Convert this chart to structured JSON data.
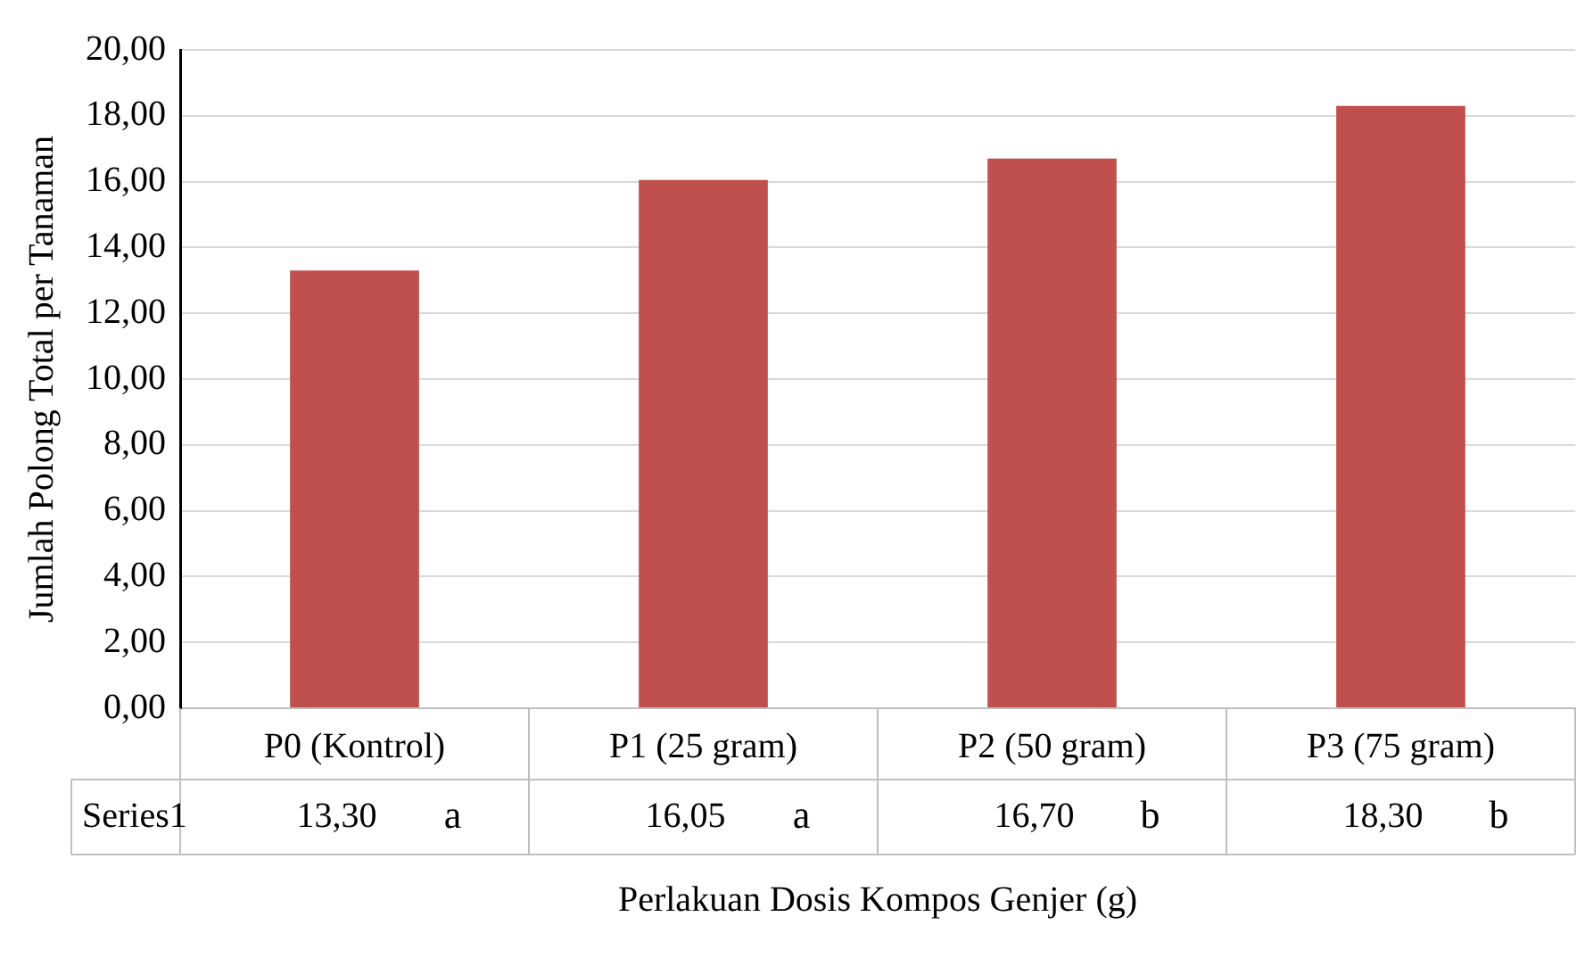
{
  "chart_data": {
    "type": "bar",
    "xlabel": "Perlakuan Dosis Kompos Genjer (g)",
    "ylabel": "Jumlah Polong Total per Tanaman",
    "categories": [
      "P0 (Kontrol)",
      "P1 (25 gram)",
      "P2 (50 gram)",
      "P3 (75 gram)"
    ],
    "series": [
      {
        "name": "Series1",
        "color": "#c0504d",
        "values": [
          13.3,
          16.05,
          16.7,
          18.3
        ],
        "value_labels": [
          "13,30",
          "16,05",
          "16,70",
          "18,30"
        ]
      }
    ],
    "annotations": [
      "a",
      "a",
      "b",
      "b"
    ],
    "ylim": [
      0,
      20
    ],
    "yticks": [
      {
        "value": 0,
        "label": "0,00"
      },
      {
        "value": 2,
        "label": "2,00"
      },
      {
        "value": 4,
        "label": "4,00"
      },
      {
        "value": 6,
        "label": "6,00"
      },
      {
        "value": 8,
        "label": "8,00"
      },
      {
        "value": 10,
        "label": "10,00"
      },
      {
        "value": 12,
        "label": "12,00"
      },
      {
        "value": 14,
        "label": "14,00"
      },
      {
        "value": 16,
        "label": "16,00"
      },
      {
        "value": 18,
        "label": "18,00"
      },
      {
        "value": 20,
        "label": "20,00"
      }
    ],
    "grid": "y"
  }
}
